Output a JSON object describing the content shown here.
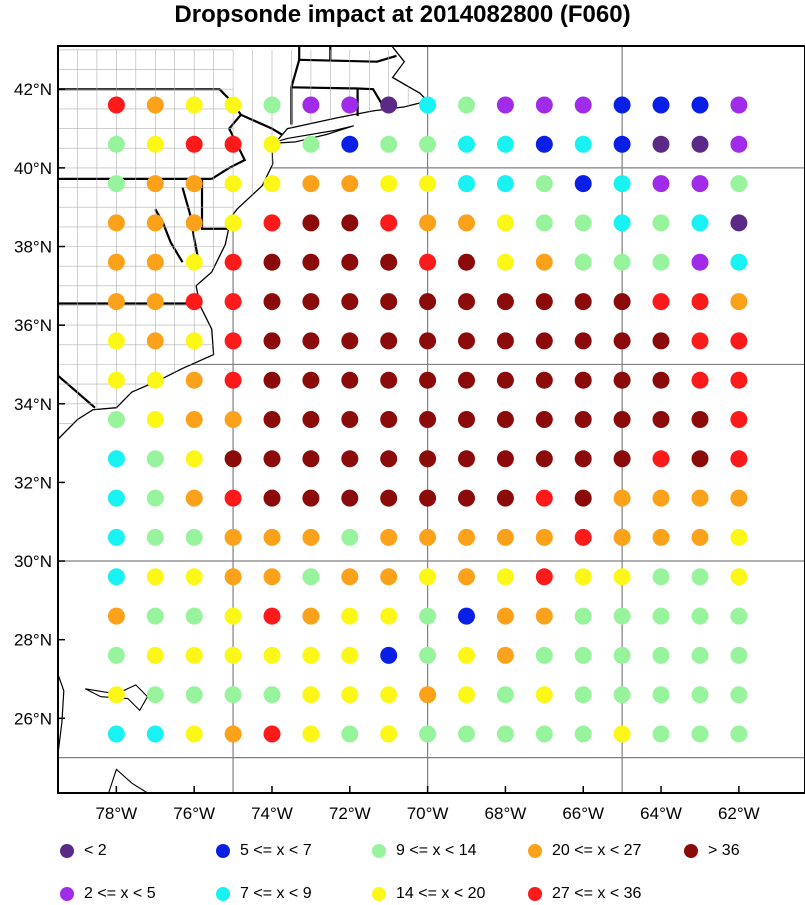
{
  "title": "Dropsonde impact at 2014082800 (F060)",
  "map": {
    "lon_range": [
      -79.5,
      -60.3
    ],
    "lat_range": [
      24.1,
      43.1
    ],
    "x_ticks": [
      {
        "lon": -78,
        "label": "78°W"
      },
      {
        "lon": -76,
        "label": "76°W"
      },
      {
        "lon": -74,
        "label": "74°W"
      },
      {
        "lon": -72,
        "label": "72°W"
      },
      {
        "lon": -70,
        "label": "70°W"
      },
      {
        "lon": -68,
        "label": "68°W"
      },
      {
        "lon": -66,
        "label": "66°W"
      },
      {
        "lon": -64,
        "label": "64°W"
      },
      {
        "lon": -62,
        "label": "62°W"
      }
    ],
    "y_ticks": [
      {
        "lat": 42,
        "label": "42°N"
      },
      {
        "lat": 40,
        "label": "40°N"
      },
      {
        "lat": 38,
        "label": "38°N"
      },
      {
        "lat": 36,
        "label": "36°N"
      },
      {
        "lat": 34,
        "label": "34°N"
      },
      {
        "lat": 32,
        "label": "32°N"
      },
      {
        "lat": 30,
        "label": "30°N"
      },
      {
        "lat": 28,
        "label": "28°N"
      },
      {
        "lat": 26,
        "label": "26°N"
      }
    ],
    "grid_lons": [
      -75,
      -70,
      -65
    ],
    "grid_lats": [
      25,
      30,
      35,
      40
    ],
    "coast_color": "#000000",
    "grid_color": "#808080"
  },
  "legend": [
    {
      "id": "c1",
      "label": "<  2",
      "color": "#5b2a86"
    },
    {
      "id": "c3",
      "label": "5 <= x <  7",
      "color": "#0a1fe6"
    },
    {
      "id": "c5",
      "label": "9 <= x < 14",
      "color": "#98f49c"
    },
    {
      "id": "c7",
      "label": "20 <= x < 27",
      "color": "#fba11a"
    },
    {
      "id": "c9",
      "label": "> 36",
      "color": "#8b0a0a"
    },
    {
      "id": "c2",
      "label": "2 <= x <  5",
      "color": "#a02ce9"
    },
    {
      "id": "c4",
      "label": "7 <= x <  9",
      "color": "#19f2f2"
    },
    {
      "id": "c6",
      "label": "14 <= x < 20",
      "color": "#fcf716"
    },
    {
      "id": "c8",
      "label": "27 <= x < 36",
      "color": "#fc1a1a"
    }
  ],
  "stations": {
    "lons": [
      -78.0,
      -77.0,
      -76.0,
      -75.0,
      -74.0,
      -73.0,
      -72.0,
      -71.0,
      -70.0,
      -69.0,
      -68.0,
      -67.0,
      -66.0,
      -65.0,
      -64.0,
      -63.0,
      -62.0
    ],
    "rows": [
      {
        "lat": 41.6,
        "classes": [
          "c8",
          "c7",
          "c6",
          "c6",
          "c5",
          "c2",
          "c2",
          "c1",
          "c4",
          "c5",
          "c2",
          "c2",
          "c2",
          "c3",
          "c3",
          "c3",
          "c2"
        ]
      },
      {
        "lat": 40.6,
        "classes": [
          "c5",
          "c6",
          "c8",
          "c8",
          "c6",
          "c5",
          "c3",
          "c5",
          "c5",
          "c4",
          "c4",
          "c3",
          "c4",
          "c3",
          "c1",
          "c1",
          "c2"
        ]
      },
      {
        "lat": 39.6,
        "classes": [
          "c5",
          "c7",
          "c7",
          "c6",
          "c6",
          "c7",
          "c7",
          "c6",
          "c6",
          "c4",
          "c4",
          "c5",
          "c3",
          "c4",
          "c2",
          "c2",
          "c5"
        ]
      },
      {
        "lat": 38.6,
        "classes": [
          "c7",
          "c7",
          "c7",
          "c6",
          "c8",
          "c9",
          "c9",
          "c8",
          "c7",
          "c7",
          "c6",
          "c5",
          "c5",
          "c4",
          "c5",
          "c4",
          "c1"
        ]
      },
      {
        "lat": 37.6,
        "classes": [
          "c7",
          "c7",
          "c6",
          "c8",
          "c9",
          "c9",
          "c9",
          "c9",
          "c8",
          "c9",
          "c6",
          "c7",
          "c5",
          "c5",
          "c5",
          "c2",
          "c4"
        ]
      },
      {
        "lat": 36.6,
        "classes": [
          "c7",
          "c7",
          "c8",
          "c8",
          "c9",
          "c9",
          "c9",
          "c9",
          "c9",
          "c9",
          "c9",
          "c9",
          "c9",
          "c9",
          "c8",
          "c8",
          "c7"
        ]
      },
      {
        "lat": 35.6,
        "classes": [
          "c6",
          "c7",
          "c6",
          "c8",
          "c9",
          "c9",
          "c9",
          "c9",
          "c9",
          "c9",
          "c9",
          "c9",
          "c9",
          "c9",
          "c9",
          "c8",
          "c8"
        ]
      },
      {
        "lat": 34.6,
        "classes": [
          "c6",
          "c6",
          "c7",
          "c8",
          "c9",
          "c9",
          "c9",
          "c9",
          "c9",
          "c9",
          "c9",
          "c9",
          "c9",
          "c9",
          "c9",
          "c8",
          "c8"
        ]
      },
      {
        "lat": 33.6,
        "classes": [
          "c5",
          "c6",
          "c7",
          "c7",
          "c9",
          "c9",
          "c9",
          "c9",
          "c9",
          "c9",
          "c9",
          "c9",
          "c9",
          "c9",
          "c9",
          "c9",
          "c8"
        ]
      },
      {
        "lat": 32.6,
        "classes": [
          "c4",
          "c5",
          "c6",
          "c9",
          "c9",
          "c9",
          "c9",
          "c9",
          "c9",
          "c9",
          "c9",
          "c9",
          "c9",
          "c9",
          "c8",
          "c9",
          "c8"
        ]
      },
      {
        "lat": 31.6,
        "classes": [
          "c4",
          "c5",
          "c7",
          "c8",
          "c9",
          "c9",
          "c9",
          "c9",
          "c9",
          "c9",
          "c9",
          "c8",
          "c9",
          "c7",
          "c7",
          "c7",
          "c7"
        ]
      },
      {
        "lat": 30.6,
        "classes": [
          "c4",
          "c5",
          "c5",
          "c7",
          "c7",
          "c7",
          "c5",
          "c7",
          "c7",
          "c7",
          "c7",
          "c7",
          "c8",
          "c7",
          "c7",
          "c7",
          "c6"
        ]
      },
      {
        "lat": 29.6,
        "classes": [
          "c4",
          "c6",
          "c6",
          "c7",
          "c7",
          "c5",
          "c7",
          "c7",
          "c6",
          "c7",
          "c6",
          "c8",
          "c6",
          "c6",
          "c5",
          "c5",
          "c6"
        ]
      },
      {
        "lat": 28.6,
        "classes": [
          "c7",
          "c5",
          "c5",
          "c6",
          "c8",
          "c7",
          "c6",
          "c6",
          "c5",
          "c3",
          "c7",
          "c7",
          "c5",
          "c5",
          "c5",
          "c5",
          "c5"
        ]
      },
      {
        "lat": 27.6,
        "classes": [
          "c5",
          "c6",
          "c6",
          "c6",
          "c6",
          "c6",
          "c6",
          "c3",
          "c5",
          "c6",
          "c7",
          "c5",
          "c5",
          "c5",
          "c5",
          "c5",
          "c5"
        ]
      },
      {
        "lat": 26.6,
        "classes": [
          "c6",
          "c5",
          "c5",
          "c5",
          "c5",
          "c6",
          "c6",
          "c6",
          "c7",
          "c6",
          "c5",
          "c6",
          "c5",
          "c5",
          "c5",
          "c5",
          "c5"
        ]
      },
      {
        "lat": 25.6,
        "classes": [
          "c4",
          "c4",
          "c6",
          "c7",
          "c8",
          "c6",
          "c5",
          "c6",
          "c5",
          "c5",
          "c5",
          "c5",
          "c5",
          "c6",
          "c5",
          "c5",
          "c5"
        ]
      }
    ]
  }
}
